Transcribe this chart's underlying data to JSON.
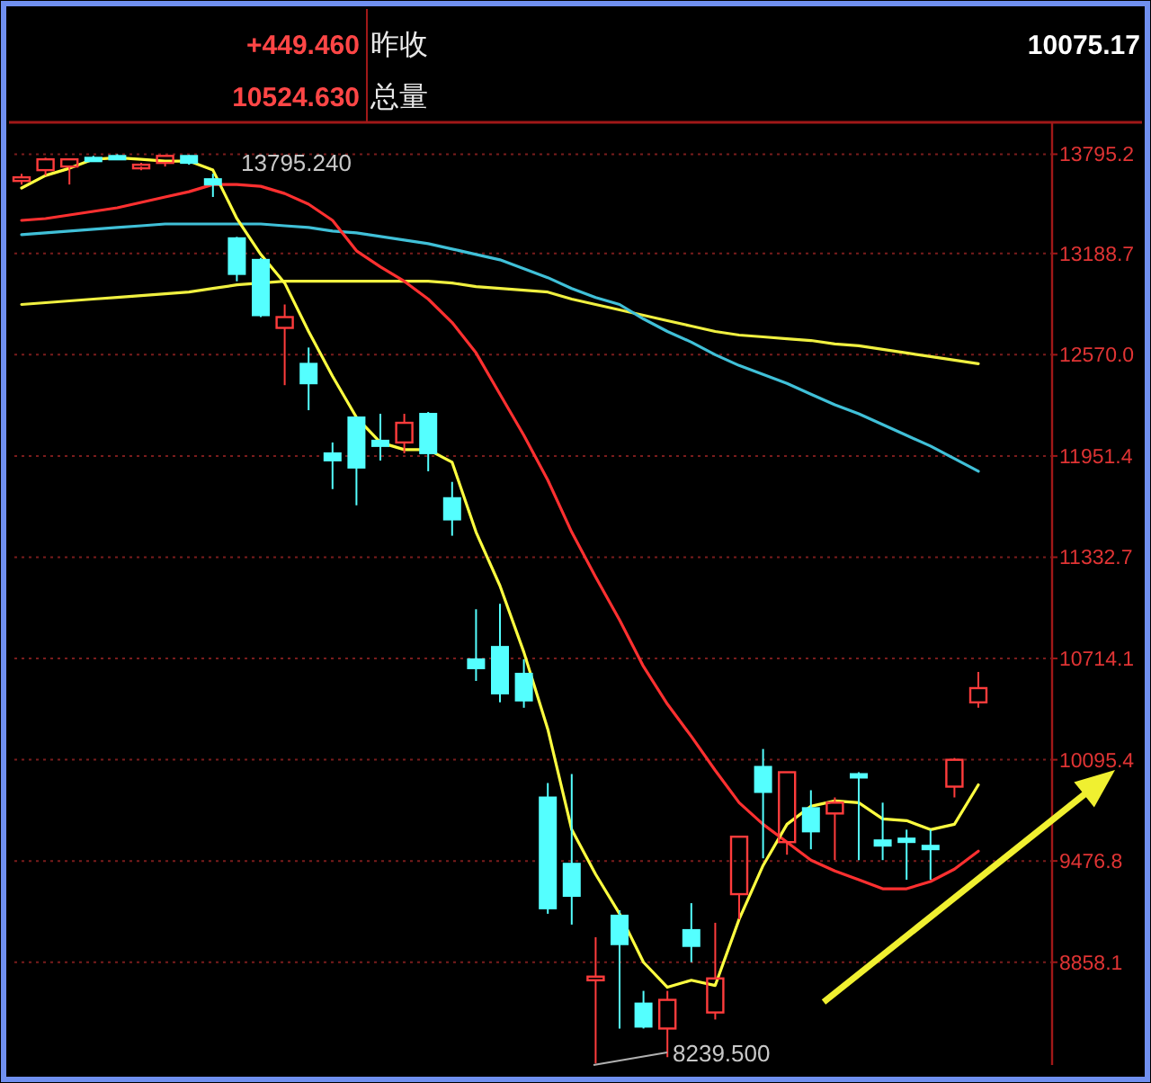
{
  "chart_data": {
    "type": "candlestick",
    "categories": [
      null,
      null,
      null,
      null,
      null,
      null,
      null,
      null,
      null,
      null,
      null,
      null,
      null,
      null,
      null,
      null,
      null,
      null,
      null,
      null,
      null,
      null,
      null,
      null,
      null,
      null,
      null,
      null,
      null,
      null,
      null,
      null,
      null,
      null,
      null,
      null,
      null,
      null,
      null,
      null,
      null
    ],
    "ohlc": [
      [
        13632,
        13676,
        13610,
        13654
      ],
      [
        13698,
        13774,
        13665,
        13764
      ],
      [
        13720,
        13764,
        13610,
        13764
      ],
      [
        13774,
        13785,
        13753,
        13764
      ],
      [
        13785,
        13795.24,
        13764,
        13774
      ],
      [
        13720,
        13742,
        13698,
        13731
      ],
      [
        13742,
        13785,
        13720,
        13785
      ],
      [
        13785,
        13790,
        13731,
        13742
      ],
      [
        13643,
        13676,
        13534,
        13610
      ],
      [
        13282,
        13290,
        13019,
        13063
      ],
      [
        13150,
        13161,
        12800,
        12811
      ],
      [
        12734,
        12877,
        12384,
        12800
      ],
      [
        12515,
        12614,
        12231,
        12395
      ],
      [
        11968,
        12034,
        11749,
        11924
      ],
      [
        12187,
        12187,
        11650,
        11880
      ],
      [
        12045,
        12209,
        11924,
        12012
      ],
      [
        12034,
        12209,
        11968,
        12154
      ],
      [
        12209,
        12220,
        11858,
        11968
      ],
      [
        11694,
        11793,
        11464,
        11563
      ],
      [
        10709,
        11015,
        10577,
        10654
      ],
      [
        10785,
        11048,
        10446,
        10500
      ],
      [
        10621,
        10709,
        10413,
        10457
      ],
      [
        9865,
        9953,
        9154,
        9187
      ],
      [
        9460,
        10008,
        9088,
        9263
      ],
      [
        8748,
        9011,
        8239.5,
        8770
      ],
      [
        9143,
        9176,
        8453,
        8968
      ],
      [
        8606,
        8683,
        8453,
        8464
      ],
      [
        8453,
        8683,
        8278,
        8628
      ],
      [
        9055,
        9219,
        8858,
        8957
      ],
      [
        8551,
        9099,
        8508,
        8759
      ],
      [
        9274,
        9625,
        9121,
        9625
      ],
      [
        10052,
        10161,
        9493,
        9898
      ],
      [
        9592,
        10019,
        9515,
        10019
      ],
      [
        9800,
        9909,
        9548,
        9657
      ],
      [
        9767,
        9865,
        9482,
        9833
      ],
      [
        10008,
        10019,
        9482,
        9986
      ],
      [
        9603,
        9833,
        9482,
        9570
      ],
      [
        9614,
        9668,
        9362,
        9603
      ],
      [
        9570,
        9668,
        9362,
        9559
      ],
      [
        9931,
        10106,
        9865,
        10095
      ],
      [
        10446,
        10632,
        10413,
        10533
      ]
    ],
    "colors": [
      "#ff3c3c",
      "#ff3c3c",
      "#ff3c3c",
      "#54ffff",
      "#54ffff",
      "#ff3c3c",
      "#ff3c3c",
      "#54ffff",
      "#54ffff",
      "#54ffff",
      "#54ffff",
      "#ff3c3c",
      "#54ffff",
      "#54ffff",
      "#54ffff",
      "#54ffff",
      "#ff3c3c",
      "#54ffff",
      "#54ffff",
      "#54ffff",
      "#54ffff",
      "#54ffff",
      "#54ffff",
      "#54ffff",
      "#ff3c3c",
      "#54ffff",
      "#54ffff",
      "#ff3c3c",
      "#54ffff",
      "#ff3c3c",
      "#ff3c3c",
      "#54ffff",
      "#ff3c3c",
      "#54ffff",
      "#ff3c3c",
      "#54ffff",
      "#54ffff",
      "#54ffff",
      "#54ffff",
      "#ff3c3c",
      "#ff3c3c"
    ],
    "series": [
      {
        "type": "line",
        "color": "#f0f040",
        "values": [
          12877,
          12888,
          12899,
          12910,
          12920,
          12931,
          12942,
          12953,
          12975,
          12997,
          13008,
          13019,
          13019,
          13019,
          13019,
          13019,
          13019,
          13019,
          13008,
          12986,
          12975,
          12964,
          12953,
          12910,
          12877,
          12844,
          12811,
          12778,
          12745,
          12712,
          12690,
          12679,
          12668,
          12657,
          12636,
          12625,
          12603,
          12581,
          12559,
          12537,
          12515
        ]
      },
      {
        "type": "line",
        "color": "#40c0d8",
        "values": [
          13304,
          13315,
          13326,
          13337,
          13348,
          13358,
          13369,
          13369,
          13369,
          13369,
          13369,
          13358,
          13348,
          13326,
          13315,
          13293,
          13271,
          13249,
          13216,
          13183,
          13150,
          13095,
          13041,
          12975,
          12920,
          12877,
          12789,
          12712,
          12647,
          12570,
          12504,
          12450,
          12395,
          12329,
          12264,
          12209,
          12143,
          12077,
          12012,
          11935,
          11858
        ]
      },
      {
        "type": "line",
        "color": "#ff3030",
        "values": [
          13391,
          13402,
          13424,
          13446,
          13468,
          13501,
          13534,
          13566,
          13610,
          13610,
          13599,
          13555,
          13490,
          13391,
          13205,
          13107,
          13019,
          12910,
          12767,
          12581,
          12329,
          12077,
          11804,
          11486,
          11212,
          10949,
          10665,
          10435,
          10238,
          10030,
          9833,
          9701,
          9592,
          9482,
          9416,
          9362,
          9307,
          9307,
          9351,
          9427,
          9537
        ]
      },
      {
        "type": "line",
        "color": "#ffff40",
        "values": [
          13589,
          13665,
          13709,
          13764,
          13774,
          13764,
          13753,
          13753,
          13698,
          13402,
          13183,
          13008,
          12712,
          12439,
          12187,
          12034,
          11990,
          11990,
          11913,
          11486,
          11158,
          10752,
          10282,
          9668,
          9395,
          9154,
          8858,
          8705,
          8748,
          8716,
          9121,
          9449,
          9701,
          9811,
          9844,
          9833,
          9734,
          9723,
          9668,
          9701,
          9942
        ]
      }
    ],
    "ylim": [
      8230,
      13990
    ],
    "yticks": [
      {
        "value": 8858.1,
        "label": "8858.1"
      },
      {
        "value": 9476.8,
        "label": "9476.8"
      },
      {
        "value": 10095.4,
        "label": "10095.4"
      },
      {
        "value": 10714.1,
        "label": "10714.1"
      },
      {
        "value": 11332.7,
        "label": "11332.7"
      },
      {
        "value": 11951.4,
        "label": "11951.4"
      },
      {
        "value": 12570.0,
        "label": "12570.0"
      },
      {
        "value": 13188.7,
        "label": "13188.7"
      },
      {
        "value": 13795.24,
        "label": "13795.2"
      }
    ],
    "grid": "y",
    "annotations": [
      "+449.460",
      "昨收",
      "10524.630",
      "总量",
      "10075.17",
      "13795.240",
      "8239.500"
    ]
  }
}
